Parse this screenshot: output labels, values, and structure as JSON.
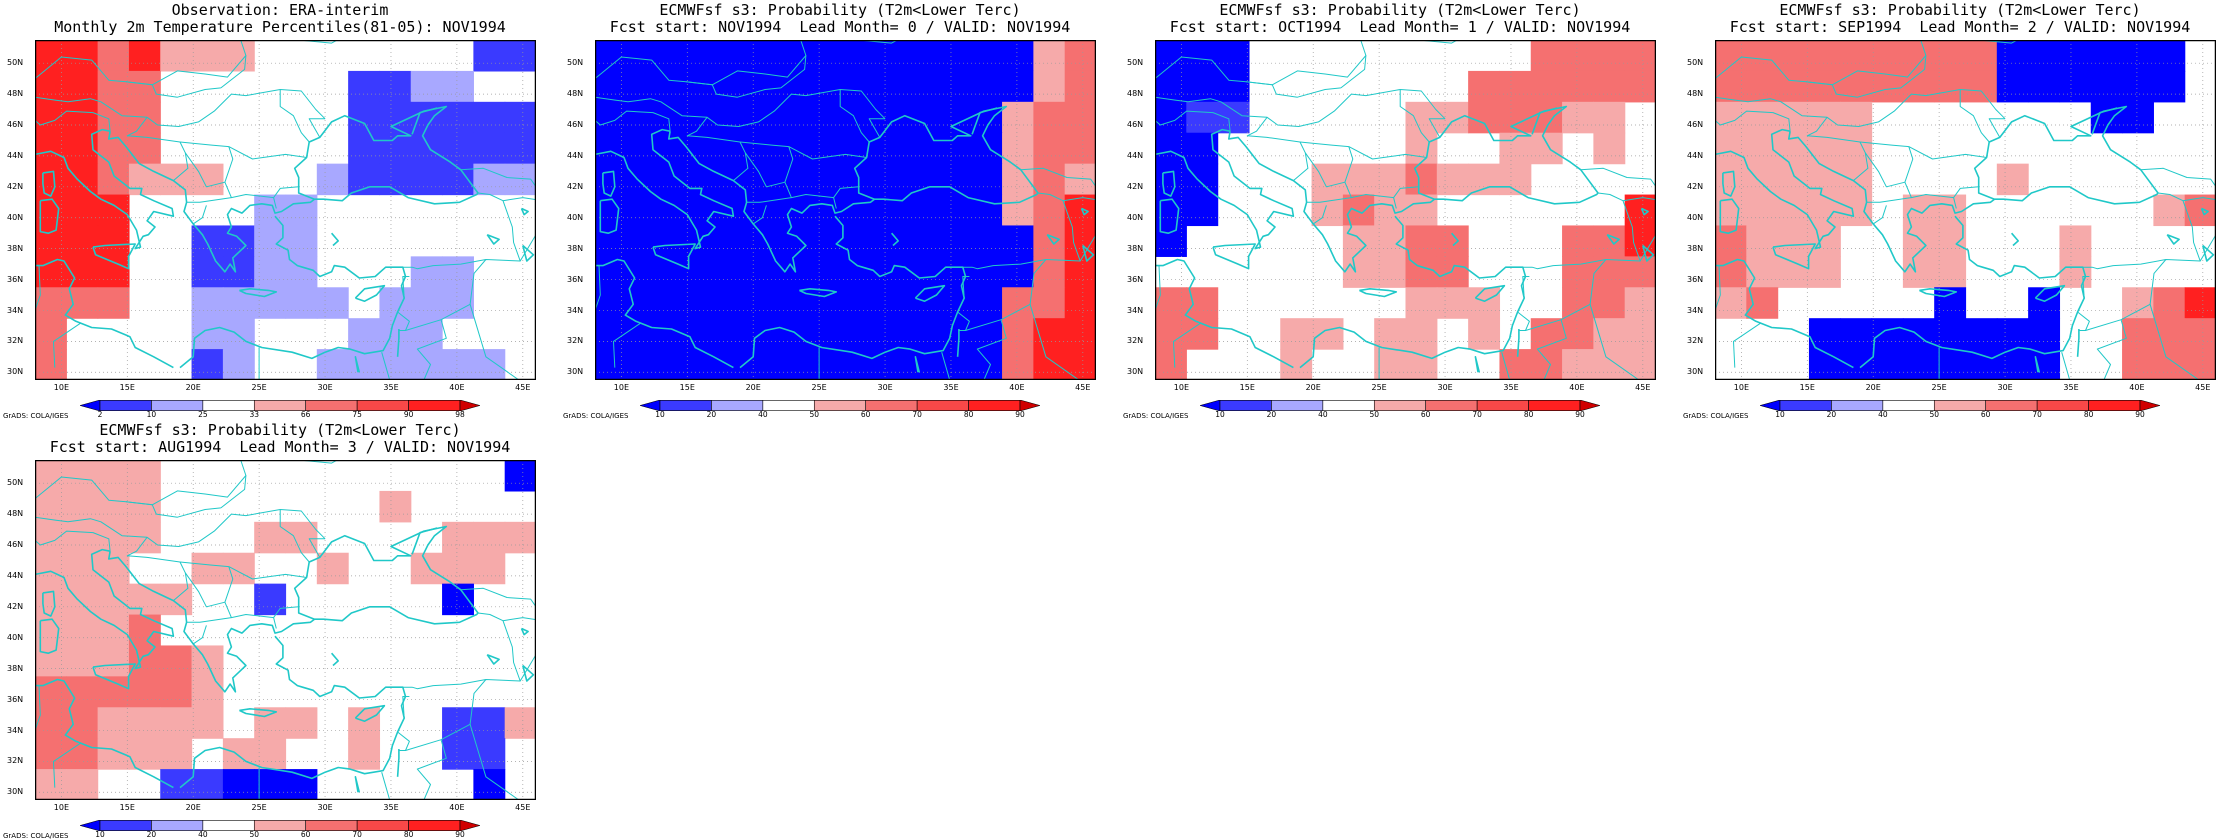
{
  "colors": {
    "coast": "#20c8c8",
    "dark_blue": "#0000ff",
    "mid_blue": "#3a3aff",
    "light_blue": "#a8a8ff",
    "pale_red": "#f6aaaa",
    "mid_red": "#f57070",
    "red": "#ff2020"
  },
  "axes": {
    "lat_labels": [
      "50N",
      "48N",
      "46N",
      "44N",
      "42N",
      "40N",
      "38N",
      "36N",
      "34N",
      "32N",
      "30N"
    ],
    "lon_labels": [
      "10E",
      "15E",
      "20E",
      "25E",
      "30E",
      "35E",
      "40E",
      "45E"
    ]
  },
  "credit": "GrADS: COLA/IGES",
  "panels": [
    {
      "title_line1": "Observation: ERA-interim",
      "title_line2": "Monthly 2m Temperature Percentiles(81-05): NOV1994",
      "colorbar_ticks": [
        "2",
        "10",
        "25",
        "33",
        "66",
        "75",
        "90",
        "98"
      ],
      "grid_rows": [
        "RRMRppp.......BB",
        "RRMM......BBLL..",
        "RRMM......BBBBBB",
        "RRMM......BBBBBB",
        "RRMppp...LBBBBLL",
        "RRR....LL.......",
        "RRR..BBLL.......",
        "RRR..BBLL...LL..",
        "MMM..LLLLL.LLL..",
        "M....LL...LLL...",
        "M....BL..LLLLLL."
      ]
    },
    {
      "title_line1": "ECMWFsf s3: Probability (T2m<Lower Terc)",
      "title_line2": "Fcst start: NOV1994  Lead Month= 0 / VALID: NOV1994",
      "colorbar_ticks": [
        "10",
        "20",
        "40",
        "50",
        "60",
        "70",
        "80",
        "90"
      ],
      "grid_rows": [
        "DDDDDDDDDDDDDDpM",
        "DDDDDDDDDDDDDDpM",
        "DDDDDDDDDDDDDpMM",
        "DDDDDDDDDDDDDpMM",
        "DDDDDDDDDDDDDpMp",
        "DDDDDDDDDDDDDpMR",
        "DDDDDDDDDDDDDDMR",
        "DDDDDDDDDDDDDDMR",
        "DDDDDDDDDDDDDMMR",
        "DDDDDDDDDDDDDMRR",
        "DDDDDDDDDDDDDMRR"
      ]
    },
    {
      "title_line1": "ECMWFsf s3: Probability (T2m<Lower Terc)",
      "title_line2": "Fcst start: OCT1994  Lead Month= 1 / VALID: NOV1994",
      "colorbar_ticks": [
        "10",
        "20",
        "40",
        "50",
        "60",
        "70",
        "80",
        "90"
      ],
      "grid_rows": [
        "DDD.........MMMM",
        "DDD.......MMMMMM",
        "DBB.....ppMMMpp.",
        "DD......p..pp.p.",
        "DD...pppMppp....",
        "DD...pMpp......R",
        "D.....ppMM...MMR",
        "......ppMM...MMM",
        "MM......ppp..MMp",
        "MM..pp.pp.p.MMpp",
        "M...p..pp..MMppp"
      ]
    },
    {
      "title_line1": "ECMWFsf s3: Probability (T2m<Lower Terc)",
      "title_line2": "Fcst start: SEP1994  Lead Month= 2 / VALID: NOV1994",
      "colorbar_ticks": [
        "10",
        "20",
        "40",
        "50",
        "60",
        "70",
        "80",
        "90"
      ],
      "grid_rows": [
        "MMMMMMMMMDDDDDD.",
        "MMMMMMMMMDDDDDD.",
        "ppppp.......DD..",
        "ppppp...........",
        "ppppp....p......",
        "ppppp.pp......pM",
        "Mppp..pp...p....",
        "Mppp..pp...p....",
        "pM.....D..D..pMR",
        "...DDDDDDDD..MMM",
        "...DDDDDDDD..MMM"
      ]
    },
    {
      "title_line1": "ECMWFsf s3: Probability (T2m<Lower Terc)",
      "title_line2": "Fcst start: AUG1994  Lead Month= 3 / VALID: NOV1994",
      "colorbar_ticks": [
        "10",
        "20",
        "40",
        "50",
        "60",
        "70",
        "80",
        "90"
      ],
      "grid_rows": [
        "pppp...........D",
        "pppp.......p....",
        "pppp...pp....ppp",
        "ppp..pp..p..ppp.",
        "ppppp..B.....D..",
        "pppM............",
        "pppMMp..........",
        "MMMMMp..........",
        "MMpppp.pp.p..BBp",
        "MMppp.pp..p..BB.",
        "pp..BBDDD.....D."
      ]
    }
  ]
}
